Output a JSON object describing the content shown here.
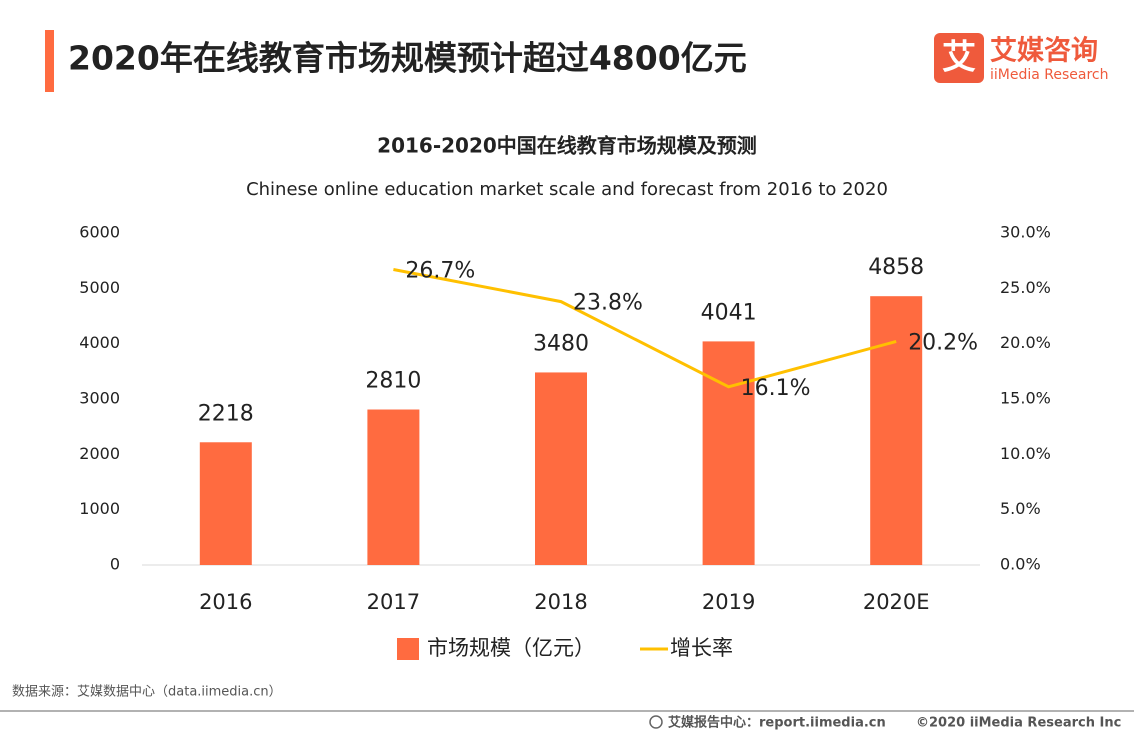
{
  "header": {
    "title": "2020年在线教育市场规模预计超过4800亿元",
    "logo": {
      "icon": "艾",
      "cn": "艾媒咨询",
      "en": "iiMedia Research"
    }
  },
  "chart_data": {
    "type": "bar",
    "title": "2016-2020中国在线教育市场规模及预测",
    "subtitle": "Chinese online education market scale and forecast from 2016 to 2020",
    "categories": [
      "2016",
      "2017",
      "2018",
      "2019",
      "2020E"
    ],
    "series": [
      {
        "name": "市场规模（亿元）",
        "type": "bar",
        "color": "#ff6b40",
        "values": [
          2218,
          2810,
          3480,
          4041,
          4858
        ]
      },
      {
        "name": "增长率",
        "type": "line",
        "axis": "y2",
        "color": "#ffc000",
        "values": [
          null,
          26.7,
          23.8,
          16.1,
          20.2
        ],
        "value_labels": [
          null,
          "26.7%",
          "23.8%",
          "16.1%",
          "20.2%"
        ]
      }
    ],
    "ylim": [
      0,
      6000
    ],
    "yticks": [
      0,
      1000,
      2000,
      3000,
      4000,
      5000,
      6000
    ],
    "y2lim": [
      0,
      30
    ],
    "y2ticks": [
      {
        "value": 0,
        "label": "0.0%"
      },
      {
        "value": 5,
        "label": "5.0%"
      },
      {
        "value": 10,
        "label": "10.0%"
      },
      {
        "value": 15,
        "label": "15.0%"
      },
      {
        "value": 20,
        "label": "20.0%"
      },
      {
        "value": 25,
        "label": "25.0%"
      },
      {
        "value": 30,
        "label": "30.0%"
      }
    ],
    "legend": "bottom"
  },
  "source": "数据来源：艾媒数据中心（data.iimedia.cn）",
  "footer": {
    "report": "艾媒报告中心：report.iimedia.cn",
    "copyright": "©2020  iiMedia Research  Inc"
  }
}
